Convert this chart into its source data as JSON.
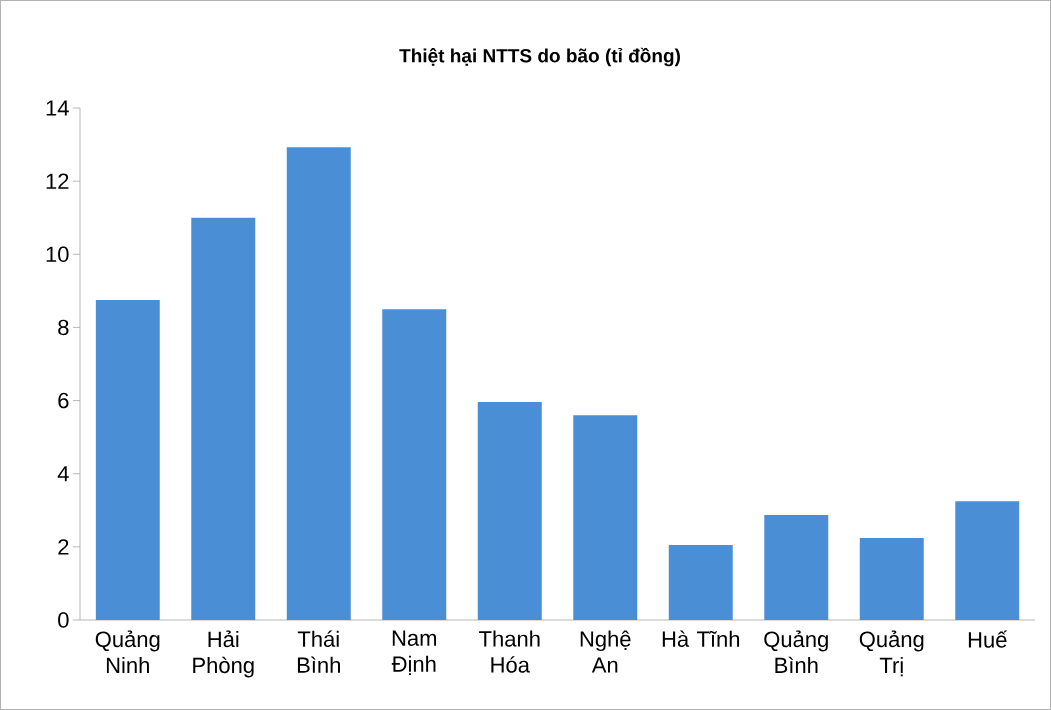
{
  "chart_data": {
    "type": "bar",
    "title": "Thiệt hại NTTS do bão (tỉ đồng)",
    "categories": [
      "Quảng Ninh",
      "Hải Phòng",
      "Thái Bình",
      "Nam Định",
      "Thanh Hóa",
      "Nghệ An",
      "Hà Tĩnh",
      "Quảng Bình",
      "Quảng Trị",
      "Huế"
    ],
    "values": [
      8.75,
      11.0,
      12.93,
      8.5,
      5.96,
      5.6,
      2.05,
      2.87,
      2.24,
      3.25
    ],
    "color": "#4a8fd6",
    "ylim": [
      0,
      14
    ],
    "yticks": [
      0,
      2,
      4,
      6,
      8,
      10,
      12,
      14
    ],
    "grid": false
  }
}
